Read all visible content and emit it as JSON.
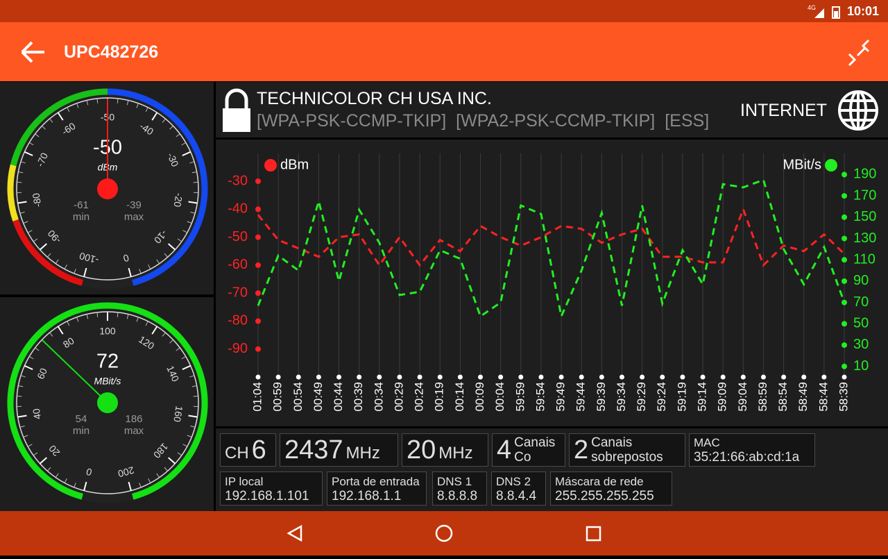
{
  "status_bar": {
    "network": "4G",
    "time": "10:01"
  },
  "app_bar": {
    "title": "UPC482726"
  },
  "chart_data": [
    {
      "type": "gauge",
      "value": -50,
      "unit": "dBm",
      "lim": [
        -100,
        0
      ],
      "ticks": [
        -100,
        -90,
        -80,
        -70,
        -60,
        -50,
        -40,
        -30,
        -20,
        -10,
        0
      ],
      "min": -61,
      "max": -39,
      "min_label": "min",
      "max_label": "max",
      "needle_color": "#ff1a1a",
      "bands": [
        {
          "from": -100,
          "to": -83,
          "color": "#e01010"
        },
        {
          "from": -83,
          "to": -73,
          "color": "#f0e020"
        },
        {
          "from": -73,
          "to": -50,
          "color": "#18c018"
        },
        {
          "from": -50,
          "to": 0,
          "color": "#1448f0"
        }
      ]
    },
    {
      "type": "gauge",
      "value": 72,
      "unit": "MBit/s",
      "lim": [
        0,
        200
      ],
      "ticks": [
        0,
        20,
        40,
        60,
        80,
        100,
        120,
        140,
        160,
        180,
        200
      ],
      "min": 54,
      "max": 186,
      "min_label": "min",
      "max_label": "max",
      "needle_color": "#14e014",
      "bands": [
        {
          "from": 0,
          "to": 200,
          "color": "#14e014"
        }
      ]
    },
    {
      "type": "line",
      "categories": [
        "01:04",
        "00:59",
        "00:54",
        "00:49",
        "00:44",
        "00:39",
        "00:34",
        "00:29",
        "00:24",
        "00:19",
        "00:14",
        "00:09",
        "00:04",
        "59:59",
        "59:54",
        "59:49",
        "59:44",
        "59:39",
        "59:34",
        "59:29",
        "59:24",
        "59:19",
        "59:14",
        "59:09",
        "59:04",
        "58:59",
        "58:54",
        "58:49",
        "58:44",
        "58:39"
      ],
      "series": [
        {
          "name": "dBm",
          "color": "#ff2222",
          "values": [
            -42,
            -51,
            -54,
            -57,
            -50,
            -49,
            -60,
            -50,
            -60,
            -51,
            -55,
            -46,
            -50,
            -53,
            -50,
            -46,
            -47,
            -52,
            -49,
            -47,
            -57,
            -57,
            -59,
            -59,
            -40,
            -60,
            -53,
            -55,
            -49,
            -56
          ]
        },
        {
          "name": "MBit/s",
          "color": "#22ee22",
          "axis": "y2",
          "values": [
            67,
            114,
            100,
            165,
            90,
            157,
            126,
            77,
            80,
            119,
            111,
            57,
            70,
            161,
            153,
            57,
            100,
            154,
            67,
            161,
            69,
            119,
            87,
            181,
            178,
            185,
            120,
            87,
            122,
            70
          ]
        }
      ],
      "ylim": [
        -100,
        -20
      ],
      "yticks": [
        -90,
        -80,
        -70,
        -60,
        -50,
        -40,
        -30
      ],
      "y2lim": [
        0,
        210
      ],
      "y2ticks": [
        10,
        30,
        50,
        70,
        90,
        110,
        130,
        150,
        170,
        190
      ],
      "grid": true
    }
  ],
  "network": {
    "vendor": "TECHNICOLOR CH USA INC.",
    "security": [
      "[WPA-PSK-CCMP-TKIP]",
      "[WPA2-PSK-CCMP-TKIP]",
      "[ESS]"
    ],
    "connectivity": "INTERNET"
  },
  "info": {
    "row1": [
      {
        "label": "CH",
        "value": 6
      },
      {
        "value": 2437,
        "unit": "MHz"
      },
      {
        "value": 20,
        "unit": "MHz"
      },
      {
        "value": 4,
        "label_lines": [
          "Canais",
          "Co"
        ]
      },
      {
        "value": 2,
        "label_lines": [
          "Canais",
          "sobrepostos"
        ]
      },
      {
        "label": "MAC",
        "text": "35:21:66:ab:cd:1a"
      }
    ],
    "row2": [
      {
        "label": "IP local",
        "text": "192.168.1.101"
      },
      {
        "label": "Porta de entrada",
        "text": "192.168.1.1"
      },
      {
        "label": "DNS 1",
        "text": "8.8.8.8"
      },
      {
        "label": "DNS 2",
        "text": "8.8.4.4"
      },
      {
        "label": "Máscara de rede",
        "text": "255.255.255.255"
      }
    ]
  }
}
